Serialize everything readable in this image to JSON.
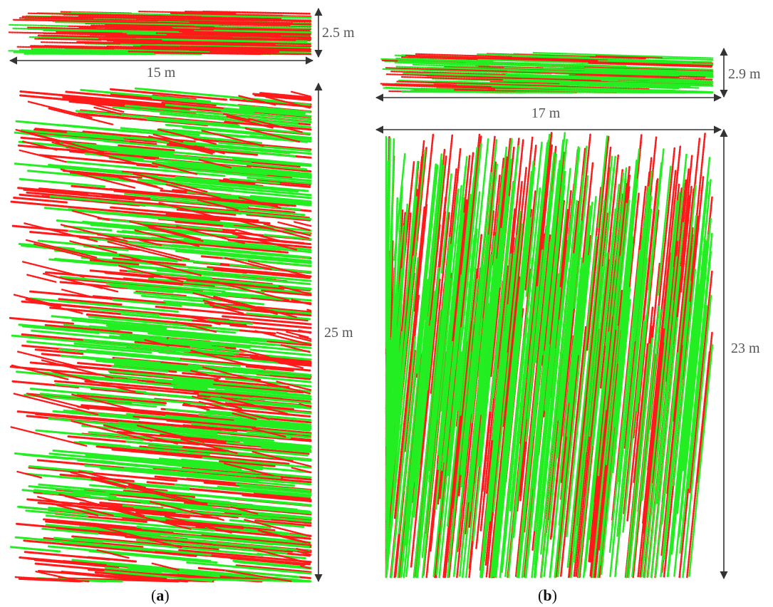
{
  "colors": {
    "points_a": "#ff1a1a",
    "points_b": "#22ee22",
    "dimension_line": "#333333",
    "dimension_text": "#555555"
  },
  "panel_a": {
    "label_open": "(",
    "label_letter": "a",
    "label_close": ")",
    "side_view": {
      "height_label": "2.5 m",
      "width_label": "15 m"
    },
    "top_view": {
      "height_label": "25 m"
    }
  },
  "panel_b": {
    "label_open": "(",
    "label_letter": "b",
    "label_close": ")",
    "side_view": {
      "height_label": "2.9 m",
      "width_label": "17 m"
    },
    "top_view": {
      "height_label": "23 m"
    }
  }
}
